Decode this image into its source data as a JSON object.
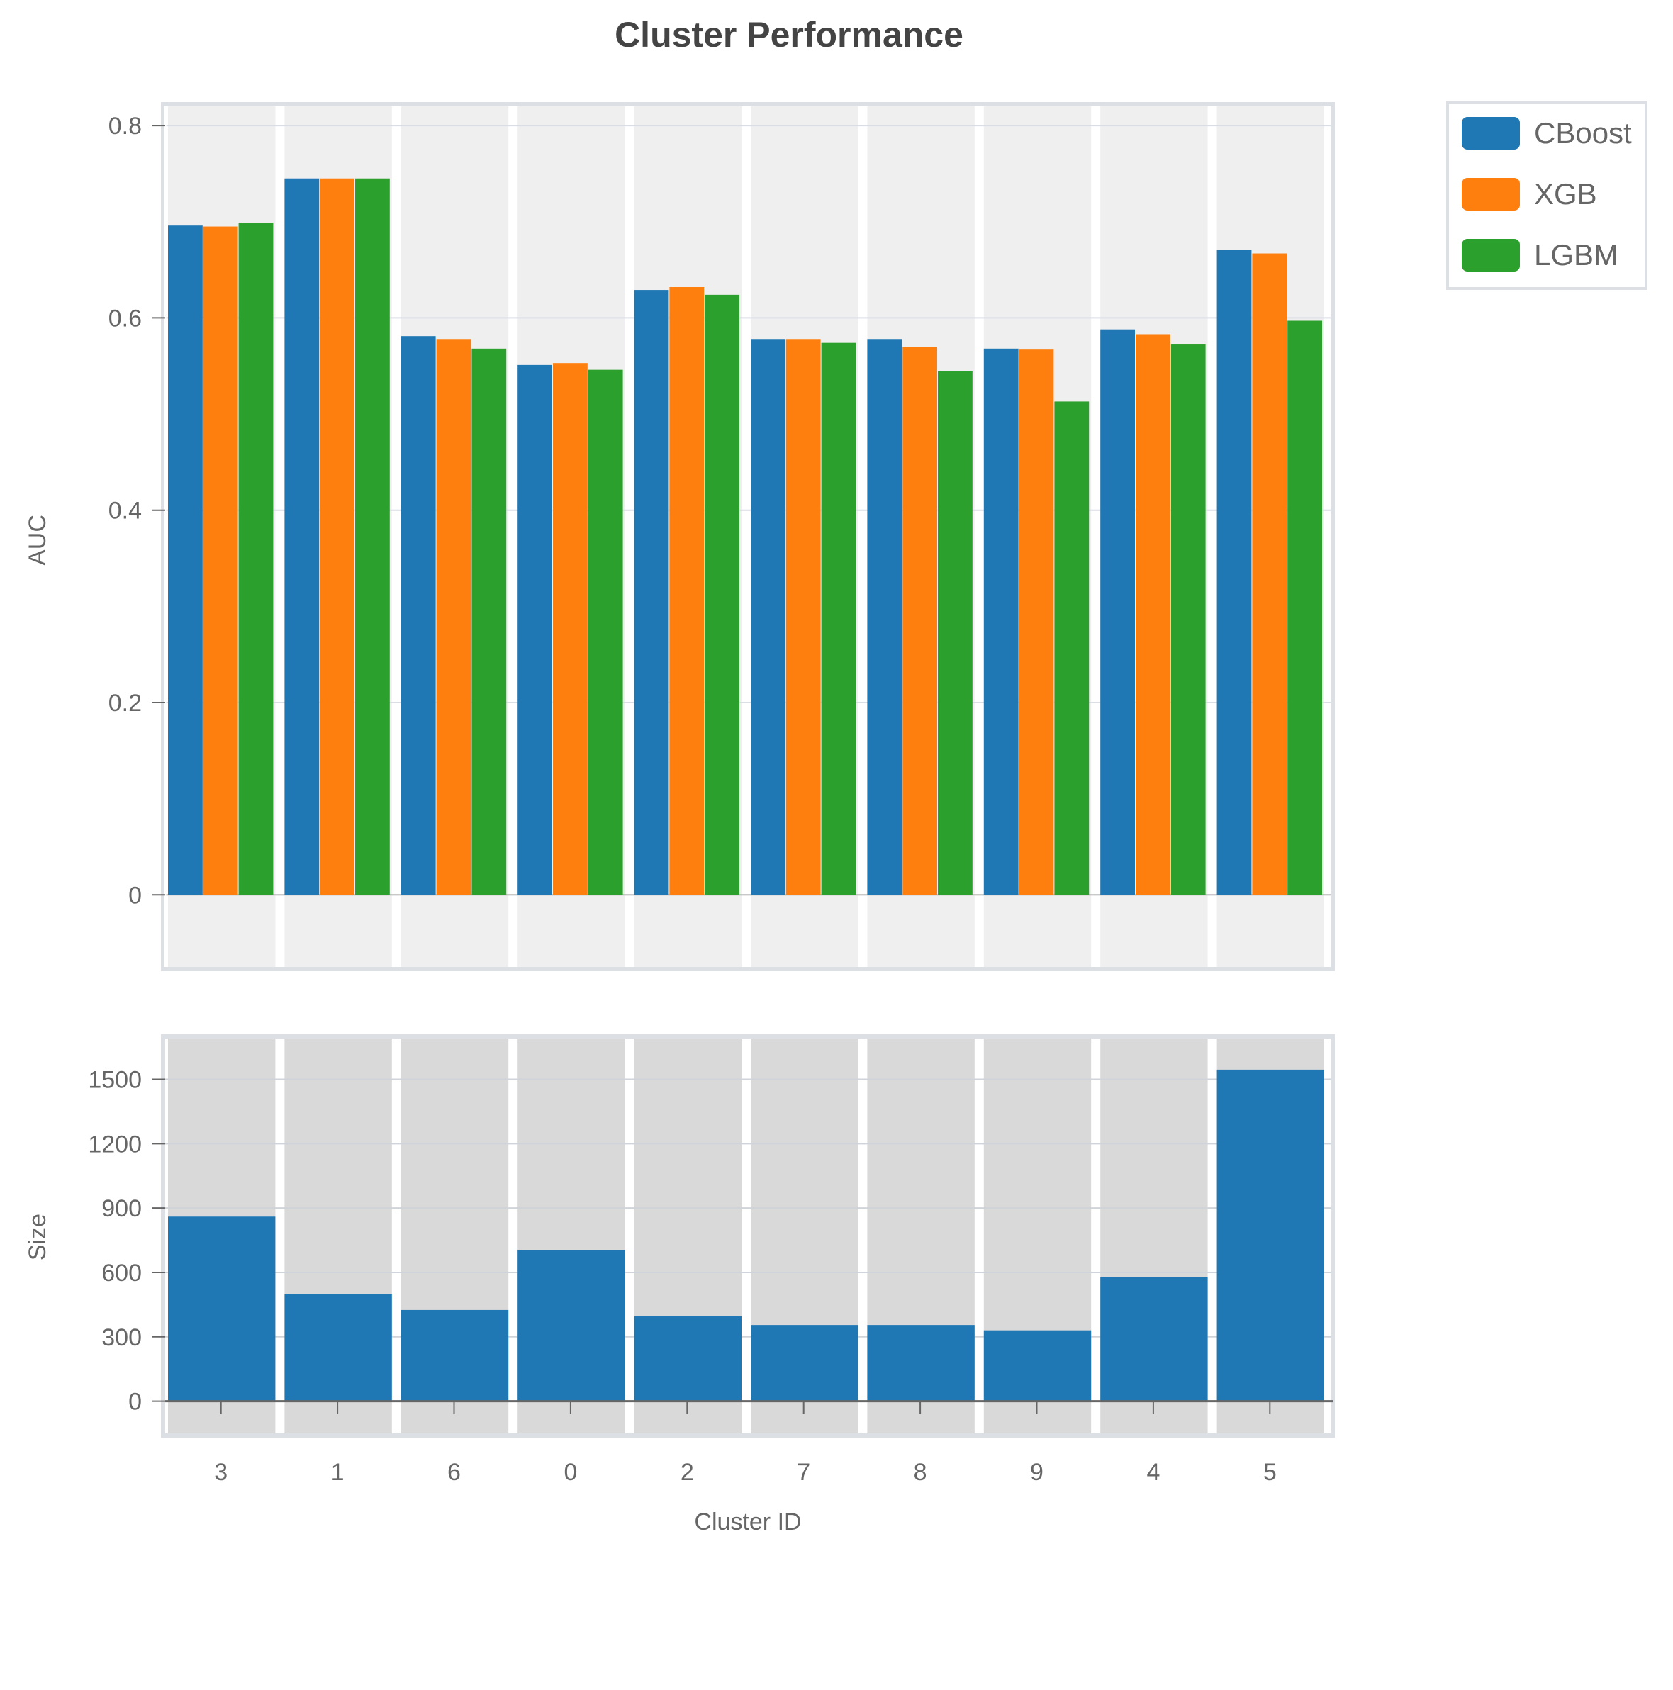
{
  "chart_data": [
    {
      "type": "bar",
      "title": "Cluster Performance",
      "ylabel": "AUC",
      "xlabel": "",
      "categories": [
        "3",
        "1",
        "6",
        "0",
        "2",
        "7",
        "8",
        "9",
        "4",
        "5"
      ],
      "series": [
        {
          "name": "CBoost",
          "color": "#1f77b4",
          "values": [
            0.696,
            0.745,
            0.581,
            0.551,
            0.629,
            0.578,
            0.578,
            0.568,
            0.588,
            0.671
          ]
        },
        {
          "name": "XGB",
          "color": "#ff7f0e",
          "values": [
            0.695,
            0.745,
            0.578,
            0.553,
            0.632,
            0.578,
            0.57,
            0.567,
            0.583,
            0.667
          ]
        },
        {
          "name": "LGBM",
          "color": "#2ca02c",
          "values": [
            0.699,
            0.745,
            0.568,
            0.546,
            0.624,
            0.574,
            0.545,
            0.513,
            0.573,
            0.597
          ]
        }
      ],
      "ylim": [
        -0.075,
        0.82
      ],
      "yticks": [
        "0",
        "0.2",
        "0.4",
        "0.6",
        "0.8"
      ],
      "grid": true,
      "legend": "top-right"
    },
    {
      "type": "bar",
      "title": "",
      "ylabel": "Size",
      "xlabel": "Cluster ID",
      "categories": [
        "3",
        "1",
        "6",
        "0",
        "2",
        "7",
        "8",
        "9",
        "4",
        "5"
      ],
      "series": [
        {
          "color": "#1f77b4",
          "values": [
            860,
            500,
            425,
            705,
            395,
            355,
            355,
            330,
            580,
            1545
          ]
        }
      ],
      "ylim": [
        -150,
        1690
      ],
      "yticks": [
        "0",
        "300",
        "600",
        "900",
        "1200",
        "1500"
      ],
      "grid": true
    }
  ]
}
